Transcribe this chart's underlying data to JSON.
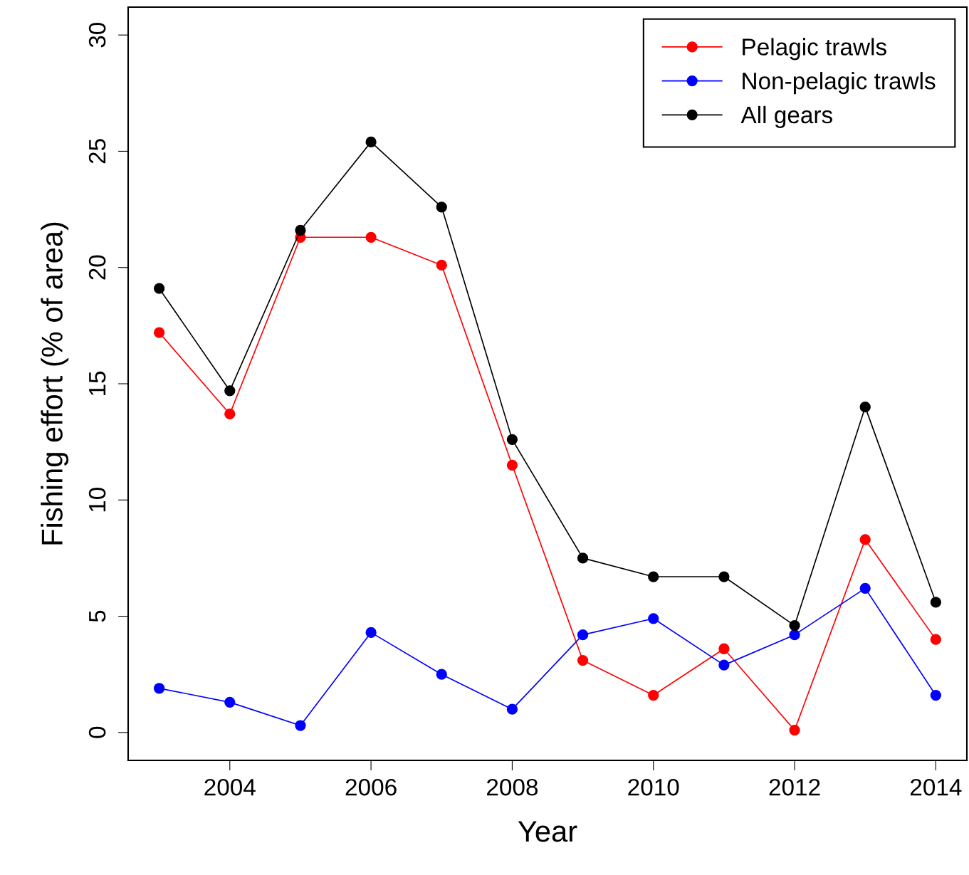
{
  "chart_data": {
    "type": "line",
    "xlabel": "Year",
    "ylabel": "Fishing effort (% of area)",
    "x": [
      2003,
      2004,
      2005,
      2006,
      2007,
      2008,
      2009,
      2010,
      2011,
      2012,
      2013,
      2014
    ],
    "series": [
      {
        "name": "Pelagic trawls",
        "color": "#ff0000",
        "values": [
          17.2,
          13.7,
          21.3,
          21.3,
          20.1,
          11.5,
          3.1,
          1.6,
          3.6,
          0.1,
          8.3,
          4.0
        ]
      },
      {
        "name": "Non-pelagic trawls",
        "color": "#0000ff",
        "values": [
          1.9,
          1.3,
          0.3,
          4.3,
          2.5,
          1.0,
          4.2,
          4.9,
          2.9,
          4.2,
          6.2,
          1.6
        ]
      },
      {
        "name": "All gears",
        "color": "#000000",
        "values": [
          19.1,
          14.7,
          21.6,
          25.4,
          22.6,
          12.6,
          7.5,
          6.7,
          6.7,
          4.6,
          14.0,
          5.6
        ]
      }
    ],
    "xlim": [
      2002.56,
      2014.44
    ],
    "xticks": [
      2004,
      2006,
      2008,
      2010,
      2012,
      2014
    ],
    "ylim": [
      -1.2,
      31.2
    ],
    "yticks": [
      0,
      5,
      10,
      15,
      20,
      25,
      30
    ],
    "marker": "circle",
    "line_style": "solid",
    "grid": false,
    "legend": "top right"
  }
}
